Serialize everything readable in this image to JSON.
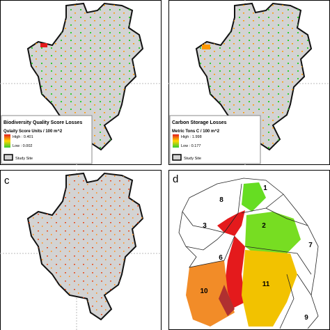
{
  "panels": [
    {
      "title": "Biodiversity Quality Score Losses",
      "units": "Qulaity Score Units / 100 m^2",
      "legend_high": "High : 0.401",
      "legend_low": "Low : 0.002",
      "study_site": "Study Site"
    },
    {
      "title": "Carbon Storage Losses",
      "units": "Metric Tons C / 100 m^2",
      "legend_high": "High : 1.998",
      "legend_low": "Low : 0.177",
      "study_site": "Study Site"
    },
    {
      "label": "c"
    },
    {
      "label": "d",
      "regions": [
        "1",
        "8",
        "3",
        "2",
        "6",
        "7",
        "11",
        "10",
        "9"
      ]
    }
  ]
}
